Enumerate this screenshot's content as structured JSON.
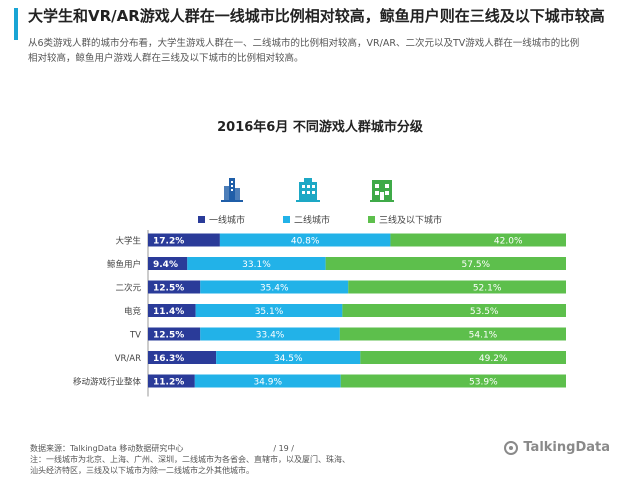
{
  "header": {
    "title": "大学生和VR/AR游戏人群在一线城市比例相对较高，鲸鱼用户则在三线及以下城市较高",
    "subtitle": "从6类游戏人群的城市分布看，大学生游戏人群在一、二线城市的比例相对较高，VR/AR、二次元以及TV游戏人群在一线城市的比例相对较高，鲸鱼用户游戏人群在三线及以下城市的比例相对较高。"
  },
  "icons": {
    "tier1": "skyscraper-icon",
    "tier2": "office-building-icon",
    "tier3": "small-building-icon"
  },
  "colors": {
    "accent": "#19a5d5",
    "tier1": "#2a3b99",
    "tier2": "#22b2e8",
    "tier3": "#5dbf4c",
    "icon_tier1": "#1f5ea8",
    "icon_tier2": "#1da8c5",
    "icon_tier3": "#3faa48"
  },
  "chart_data": {
    "type": "bar",
    "orientation": "horizontal",
    "stacked": true,
    "title": "2016年6月  不同游戏人群城市分级",
    "categories": [
      "大学生",
      "鲸鱼用户",
      "二次元",
      "电竞",
      "TV",
      "VR/AR",
      "移动游戏行业整体"
    ],
    "series": [
      {
        "name": "一线城市",
        "values": [
          17.2,
          9.4,
          12.5,
          11.4,
          12.5,
          16.3,
          11.2
        ],
        "labels": [
          "17.2%",
          "9.4%",
          "12.5%",
          "11.4%",
          "12.5%",
          "16.3%",
          "11.2%"
        ]
      },
      {
        "name": "二线城市",
        "values": [
          40.8,
          33.1,
          35.4,
          35.1,
          33.4,
          34.5,
          34.9
        ],
        "labels": [
          "40.8%",
          "33.1%",
          "35.4%",
          "35.1%",
          "33.4%",
          "34.5%",
          "34.9%"
        ]
      },
      {
        "name": "三线及以下城市",
        "values": [
          42.0,
          57.5,
          52.1,
          53.5,
          54.1,
          49.2,
          53.9
        ],
        "labels": [
          "42.0%",
          "57.5%",
          "52.1%",
          "53.5%",
          "54.1%",
          "49.2%",
          "53.9%"
        ]
      }
    ],
    "xlim": [
      0,
      100
    ],
    "legend_position": "top-center"
  },
  "footer": {
    "line1": "数据来源：TalkingData  移动数据研究中心",
    "page": "/ 19 /",
    "line2": "注：一线城市为北京、上海、广州、深圳，二线城市为各省会、直辖市，以及厦门、珠海、",
    "line3": "汕头经济特区，三线及以下城市为除一二线城市之外其他城市。",
    "brand": "TalkingData"
  }
}
